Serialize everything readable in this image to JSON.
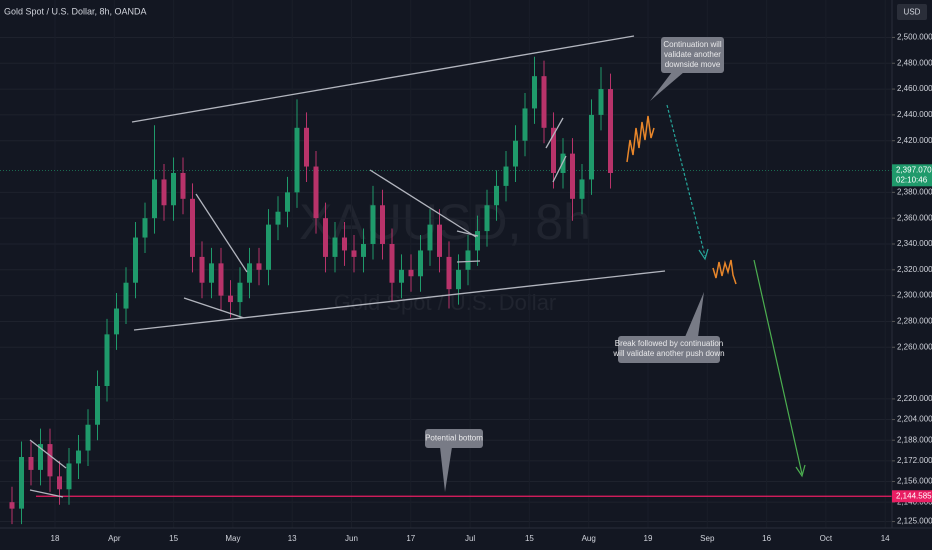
{
  "chart_data": {
    "type": "candlestick",
    "title": "Gold Spot / U.S. Dollar, 8h, OANDA",
    "watermark": "XAUUSD, 8h",
    "watermark_subtitle": "Gold Spot / U.S. Dollar",
    "currency": "USD",
    "up_color": "#1f9a6b",
    "down_color": "#b8336a",
    "ylim": [
      2120,
      2529
    ],
    "yticks": [
      {
        "value": 2125,
        "label": "2,125.000"
      },
      {
        "value": 2140,
        "label": "2,140.000"
      },
      {
        "value": 2156,
        "label": "2,156.000"
      },
      {
        "value": 2172,
        "label": "2,172.000"
      },
      {
        "value": 2188,
        "label": "2,188.000"
      },
      {
        "value": 2204,
        "label": "2,204.000"
      },
      {
        "value": 2220,
        "label": "2,220.000"
      },
      {
        "value": 2260,
        "label": "2,260.000"
      },
      {
        "value": 2280,
        "label": "2,280.000"
      },
      {
        "value": 2300,
        "label": "2,300.000"
      },
      {
        "value": 2320,
        "label": "2,320.000"
      },
      {
        "value": 2340,
        "label": "2,340.000"
      },
      {
        "value": 2360,
        "label": "2,360.000"
      },
      {
        "value": 2380,
        "label": "2,380.000"
      },
      {
        "value": 2420,
        "label": "2,420.000"
      },
      {
        "value": 2440,
        "label": "2,440.000"
      },
      {
        "value": 2460,
        "label": "2,460.000"
      },
      {
        "value": 2480,
        "label": "2,480.000"
      },
      {
        "value": 2500,
        "label": "2,500.000"
      }
    ],
    "x_labels": [
      "18",
      "Apr",
      "15",
      "May",
      "13",
      "Jun",
      "17",
      "Jul",
      "15",
      "Aug",
      "19",
      "Sep",
      "16",
      "Oct",
      "14"
    ],
    "candles": {
      "open": [
        2140,
        2135,
        2175,
        2165,
        2185,
        2160,
        2150,
        2170,
        2180,
        2200,
        2230,
        2270,
        2290,
        2310,
        2345,
        2360,
        2390,
        2370,
        2395,
        2375,
        2330,
        2310,
        2325,
        2300,
        2295,
        2310,
        2325,
        2320,
        2355,
        2365,
        2380,
        2430,
        2400,
        2360,
        2330,
        2345,
        2335,
        2330,
        2340,
        2370,
        2340,
        2310,
        2320,
        2315,
        2335,
        2355,
        2330,
        2305,
        2320,
        2335,
        2350,
        2370,
        2385,
        2400,
        2420,
        2445,
        2470,
        2430,
        2395,
        2410,
        2375,
        2390,
        2440,
        2460
      ],
      "high": [
        2152,
        2187,
        2187,
        2197,
        2197,
        2172,
        2182,
        2192,
        2212,
        2242,
        2282,
        2302,
        2322,
        2357,
        2372,
        2432,
        2402,
        2407,
        2407,
        2387,
        2342,
        2337,
        2337,
        2312,
        2322,
        2337,
        2337,
        2367,
        2377,
        2392,
        2452,
        2442,
        2412,
        2372,
        2357,
        2357,
        2347,
        2352,
        2385,
        2382,
        2352,
        2332,
        2332,
        2347,
        2367,
        2367,
        2342,
        2332,
        2347,
        2362,
        2382,
        2397,
        2412,
        2432,
        2457,
        2485,
        2482,
        2442,
        2422,
        2422,
        2402,
        2452,
        2477,
        2472
      ],
      "low": [
        2123,
        2123,
        2153,
        2153,
        2148,
        2138,
        2138,
        2158,
        2168,
        2188,
        2218,
        2258,
        2278,
        2298,
        2333,
        2348,
        2358,
        2358,
        2363,
        2318,
        2298,
        2298,
        2288,
        2283,
        2283,
        2298,
        2308,
        2308,
        2343,
        2353,
        2368,
        2388,
        2348,
        2318,
        2318,
        2323,
        2318,
        2318,
        2328,
        2328,
        2295,
        2298,
        2303,
        2303,
        2323,
        2318,
        2290,
        2293,
        2308,
        2323,
        2338,
        2358,
        2373,
        2388,
        2408,
        2433,
        2418,
        2383,
        2383,
        2358,
        2363,
        2378,
        2428,
        2383
      ],
      "close": [
        2135,
        2175,
        2165,
        2185,
        2160,
        2150,
        2170,
        2180,
        2200,
        2230,
        2270,
        2290,
        2310,
        2345,
        2360,
        2390,
        2370,
        2395,
        2375,
        2330,
        2310,
        2325,
        2300,
        2295,
        2310,
        2325,
        2320,
        2355,
        2365,
        2380,
        2430,
        2400,
        2360,
        2330,
        2345,
        2335,
        2330,
        2340,
        2370,
        2340,
        2310,
        2320,
        2315,
        2335,
        2355,
        2330,
        2305,
        2320,
        2335,
        2350,
        2370,
        2385,
        2400,
        2420,
        2445,
        2470,
        2430,
        2395,
        2410,
        2375,
        2390,
        2440,
        2460,
        2395
      ]
    },
    "price_lines": [
      {
        "value": 2397.07,
        "label": "2,397.070",
        "countdown": "02:10:46",
        "color": "#1f9a6b"
      },
      {
        "value": 2144.585,
        "label": "2,144.585",
        "color": "#e91e63"
      }
    ],
    "annotations": [
      {
        "lines": [
          "Continuation will",
          "validate another",
          "downside move"
        ]
      },
      {
        "lines": [
          "Break followed by continuation",
          "will validate another push down"
        ]
      },
      {
        "lines": [
          "Potential bottom"
        ]
      }
    ]
  }
}
